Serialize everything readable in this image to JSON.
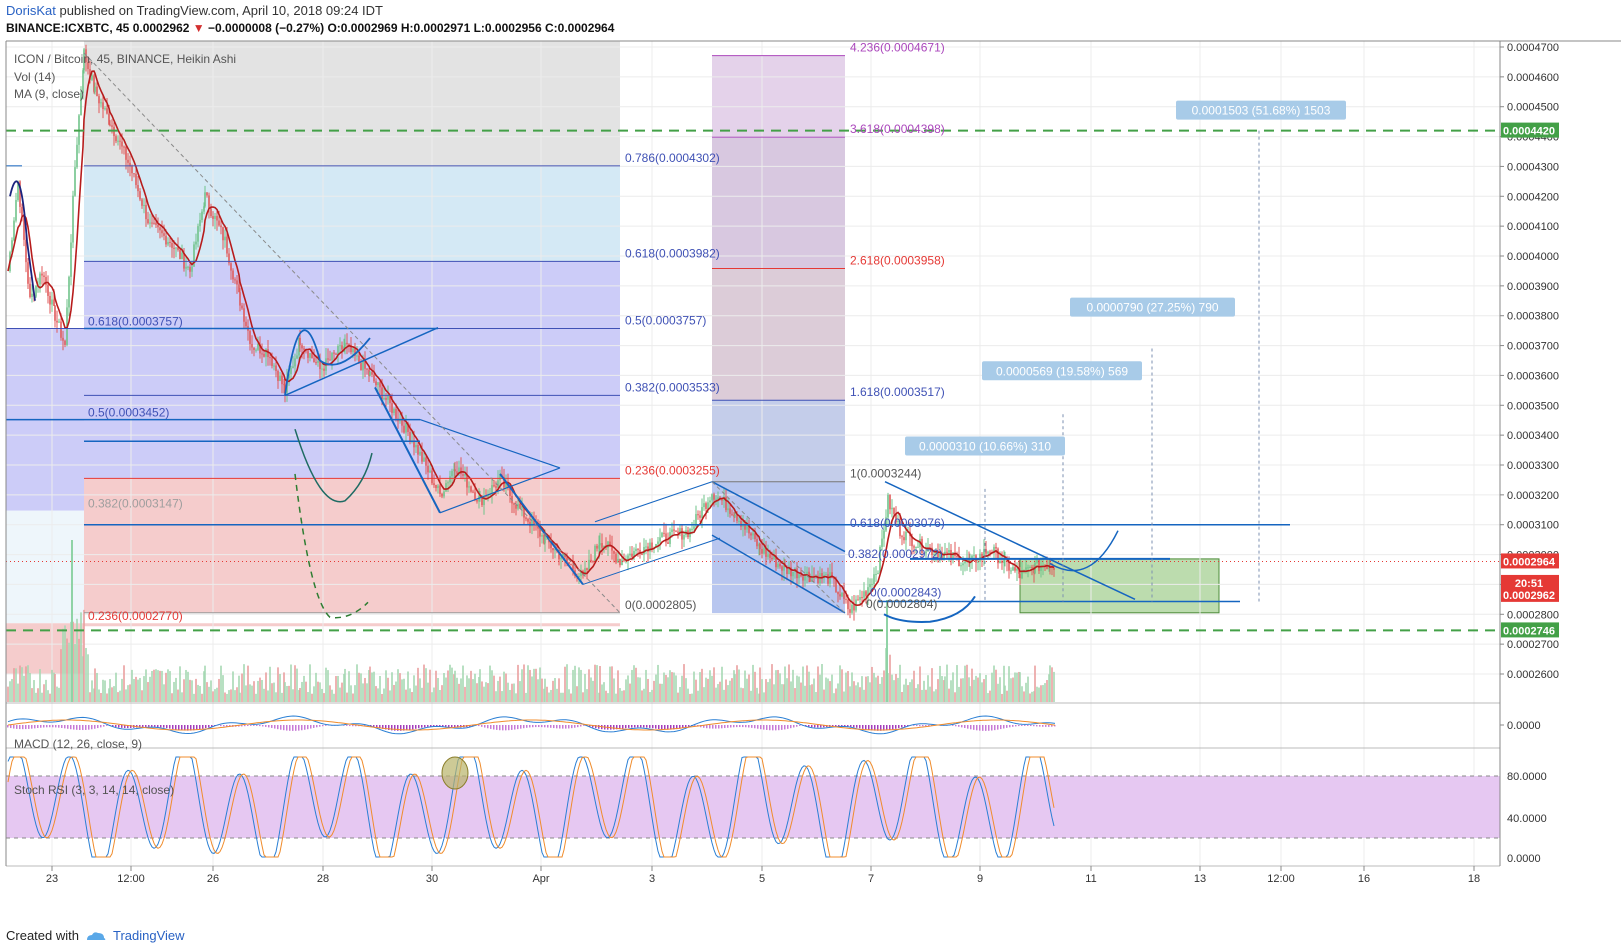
{
  "header": {
    "author": "DorisKat",
    "published": " published on TradingView.com, April 10, 2018 09:24 IDT",
    "symbol": "BINANCE:ICXBTC, 45",
    "last": "0.0002962",
    "change": "−0.0000008 (−0.27%)",
    "o": "O:0.0002969",
    "h": "H:0.0002971",
    "l": "L:0.0002956",
    "c": "C:0.0002964"
  },
  "legend": {
    "title": "ICON / Bitcoin, 45, BINANCE, Heikin Ashi",
    "vol": "Vol (14)",
    "ma": "MA (9, close)",
    "macd": "MACD (12, 26, close, 9)",
    "stoch": "Stoch RSI (3, 3, 14, 14, close)"
  },
  "footer": {
    "created": "Created with",
    "brand": "TradingView"
  },
  "colors": {
    "fib_label_blue": "#3f51b5",
    "fib_label_red": "#e53935",
    "fib_label_purple": "#ab47bc",
    "dashed_green": "#43a047",
    "trend_blue": "#1565c0",
    "candle_up": "#6fc38a",
    "candle_down": "#e05a5a",
    "ma": "#b71c1c",
    "stoch_fill": "#e6c8f2",
    "measure_box": "#a8cbe8"
  },
  "price_axis": {
    "ticks": [
      "0.0004700",
      "0.0004600",
      "0.0004500",
      "0.0004400",
      "0.0004300",
      "0.0004200",
      "0.0004100",
      "0.0004000",
      "0.0003900",
      "0.0003800",
      "0.0003700",
      "0.0003600",
      "0.0003500",
      "0.0003400",
      "0.0003300",
      "0.0003200",
      "0.0003100",
      "0.0003000",
      "0.0002900",
      "0.0002800",
      "0.0002700",
      "0.0002600"
    ],
    "badges": [
      {
        "text": "0.0004420",
        "color": "#43a047",
        "price": 0.000442
      },
      {
        "text": "0.0002964",
        "color": "#e53935",
        "price": 0.0002977
      },
      {
        "text": "20:51",
        "color": "#e53935",
        "price": 0.0002905
      },
      {
        "text": "0.0002962",
        "color": "#e53935",
        "price": 0.0002865
      },
      {
        "text": "0.0002746",
        "color": "#43a047",
        "price": 0.0002746
      }
    ],
    "partial_tick": "0.00"
  },
  "time_axis": [
    "23",
    "12:00",
    "26",
    "28",
    "30",
    "Apr",
    "3",
    "5",
    "7",
    "9",
    "11",
    "13",
    "12:00",
    "16",
    "18"
  ],
  "fib_left": [
    {
      "text": "0.618(0.0003757)",
      "price": 0.0003757,
      "color": "#3f51b5"
    },
    {
      "text": "0.5(0.0003452)",
      "price": 0.0003452,
      "color": "#3f51b5"
    },
    {
      "text": "0.382(0.0003147)",
      "price": 0.0003147,
      "color": "#9e9e9e"
    },
    {
      "text": "0.236(0.0002770)",
      "price": 0.000277,
      "color": "#e53935"
    }
  ],
  "fib_mid": [
    {
      "text": "0.786(0.0004302)",
      "price": 0.0004302,
      "color": "#3f51b5"
    },
    {
      "text": "0.618(0.0003982)",
      "price": 0.0003982,
      "color": "#3f51b5"
    },
    {
      "text": "0.5(0.0003757)",
      "price": 0.0003757,
      "color": "#3f51b5"
    },
    {
      "text": "0.382(0.0003533)",
      "price": 0.0003533,
      "color": "#3f51b5"
    },
    {
      "text": "0.236(0.0003255)",
      "price": 0.0003255,
      "color": "#e53935"
    },
    {
      "text": "0(0.0002805)",
      "price": 0.0002805,
      "color": "#555555"
    }
  ],
  "fib_ext": [
    {
      "text": "4.236(0.0004671)",
      "price": 0.0004671,
      "color": "#ab47bc"
    },
    {
      "text": "3.618(0.0004398)",
      "price": 0.0004398,
      "color": "#ab47bc"
    },
    {
      "text": "2.618(0.0003958)",
      "price": 0.0003958,
      "color": "#e53935"
    },
    {
      "text": "1.618(0.0003517)",
      "price": 0.0003517,
      "color": "#3f51b5"
    },
    {
      "text": "1(0.0003244)",
      "price": 0.0003244,
      "color": "#555555"
    }
  ],
  "fib_right": [
    {
      "text": "0.618(0.0003076)",
      "price": 0.0003076,
      "color": "#3f51b5"
    },
    {
      "text": "0.382(0.0002972)",
      "price": 0.0002972,
      "color": "#3f51b5"
    },
    {
      "text": "0(0.0002843)",
      "price": 0.0002843,
      "color": "#3f51b5"
    },
    {
      "text": "0(0.0002804)",
      "price": 0.0002804,
      "color": "#555555"
    }
  ],
  "measurements": [
    {
      "text": "0.0001503 (51.68%) 1503",
      "top": 0.000442
    },
    {
      "text": "0.0000790 (27.25%) 790",
      "top": 0.000369
    },
    {
      "text": "0.0000569 (19.58%) 569",
      "top": 0.000347
    },
    {
      "text": "0.0000310 (10.66%) 310",
      "top": 0.000322
    }
  ],
  "macd_axis": [
    "0.0000"
  ],
  "stoch_axis": [
    "80.0000",
    "40.0000",
    "0.0000"
  ],
  "chart_data": {
    "type": "line",
    "title": "ICON / Bitcoin, 45, BINANCE, Heikin Ashi",
    "xlabel": "",
    "ylabel": "",
    "ylim": [
      0.00025,
      0.00048
    ],
    "x": [
      "23",
      "12:00",
      "26",
      "28",
      "30",
      "Apr",
      "3",
      "5",
      "7",
      "9",
      "11"
    ],
    "series": [
      {
        "name": "ICON / Bitcoin",
        "values": [
          0.000395,
          0.000455,
          0.00039,
          0.000365,
          0.00033,
          0.0003,
          0.000305,
          0.0003,
          0.000285,
          0.0003,
          0.000296
        ]
      },
      {
        "name": "MA (9, close)",
        "values": [
          0.00038,
          0.00044,
          0.000395,
          0.000362,
          0.000332,
          0.000303,
          0.000304,
          0.000299,
          0.000288,
          0.000298,
          0.000297
        ]
      }
    ],
    "hlines": [
      {
        "price": 0.000442,
        "style": "dashed",
        "color": "#43a047"
      },
      {
        "price": 0.0002746,
        "style": "dashed",
        "color": "#43a047"
      }
    ],
    "grid": true,
    "legend": "top-left"
  }
}
